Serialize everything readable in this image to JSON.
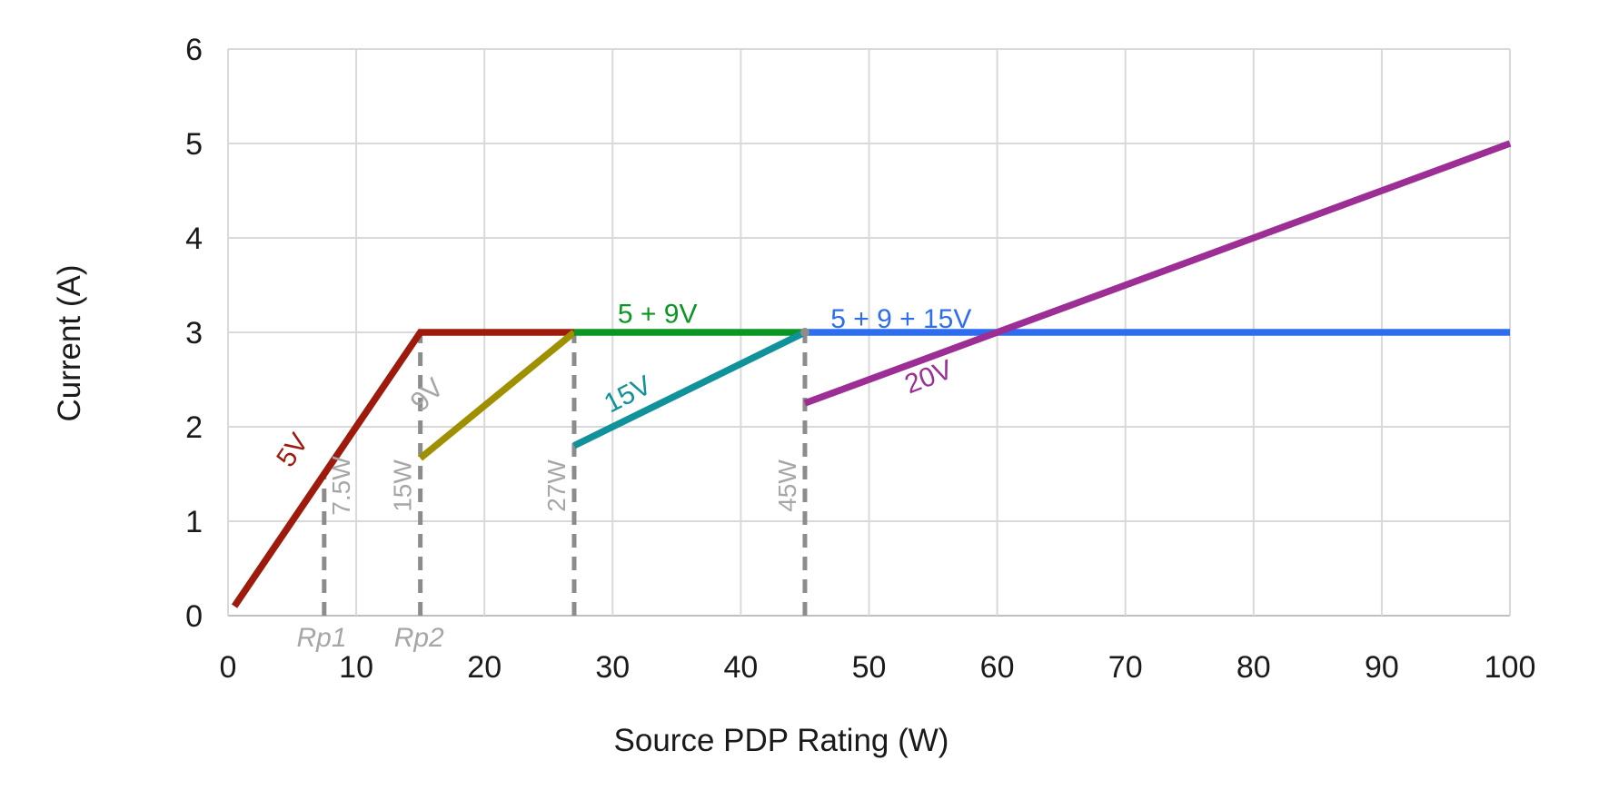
{
  "chart_data": {
    "type": "line",
    "title": "",
    "xlabel": "Source PDP Rating (W)",
    "ylabel": "Current (A)",
    "xlim": [
      0,
      100
    ],
    "ylim": [
      0,
      6
    ],
    "xticks": [
      0,
      10,
      20,
      30,
      40,
      50,
      60,
      70,
      80,
      90,
      100
    ],
    "yticks": [
      0,
      1,
      2,
      3,
      4,
      5,
      6
    ],
    "grid": true,
    "legend_position": "inline-labels",
    "series": [
      {
        "name": "5V",
        "color": "#9E1A0C",
        "points": [
          [
            0.5,
            0.1
          ],
          [
            15,
            3
          ],
          [
            27,
            3
          ]
        ],
        "label": {
          "text": "5V",
          "x": 5.6,
          "y": 1.7,
          "rotation": -56,
          "color": "#9E1A0C"
        }
      },
      {
        "name": "9V",
        "color": "#9E9000",
        "points": [
          [
            15,
            1.667
          ],
          [
            27,
            3
          ]
        ],
        "label": {
          "text": "9V",
          "x": 16.0,
          "y": 2.27,
          "rotation": -44,
          "color": "#A6A6A6"
        }
      },
      {
        "name": "5 + 9V",
        "color": "#0A9622",
        "points": [
          [
            27,
            3
          ],
          [
            45,
            3
          ]
        ],
        "label": {
          "text": "5 + 9V",
          "x": 33.5,
          "y": 3.1,
          "rotation": 0,
          "color": "#0A9622"
        }
      },
      {
        "name": "15V",
        "color": "#10929A",
        "points": [
          [
            27,
            1.8
          ],
          [
            45,
            3
          ]
        ],
        "label": {
          "text": "15V",
          "x": 31.5,
          "y": 2.26,
          "rotation": -27,
          "color": "#10929A"
        }
      },
      {
        "name": "5 + 9 + 15V",
        "color": "#2E6CF0",
        "points": [
          [
            45,
            3
          ],
          [
            100,
            3
          ]
        ],
        "label": {
          "text": "5 + 9 + 15V",
          "x": 52.5,
          "y": 3.05,
          "rotation": 0,
          "color": "#2E6CF0"
        }
      },
      {
        "name": "20V",
        "color": "#9C2E96",
        "points": [
          [
            45,
            2.25
          ],
          [
            100,
            5
          ]
        ],
        "label": {
          "text": "20V",
          "x": 54.9,
          "y": 2.44,
          "rotation": -21,
          "color": "#9C2E96"
        }
      }
    ],
    "reference_lines": [
      {
        "x": 7.5,
        "top": 1.5,
        "label": "7.5W",
        "label_side": "right"
      },
      {
        "x": 15,
        "top": 3,
        "label": "15W",
        "label_side": "left"
      },
      {
        "x": 27,
        "top": 3,
        "label": "27W",
        "label_side": "left"
      },
      {
        "x": 45,
        "top": 3,
        "label": "45W",
        "label_side": "left"
      }
    ],
    "axis_annotations": [
      {
        "x": 7.3,
        "text": "Rp1"
      },
      {
        "x": 14.9,
        "text": "Rp2"
      }
    ],
    "colors": {
      "grid": "#D9D9D9",
      "axis": "#BFBFBF",
      "dash": "#8C8C8C",
      "muted_label": "#A6A6A6",
      "tick": "#1A1A1A"
    }
  }
}
